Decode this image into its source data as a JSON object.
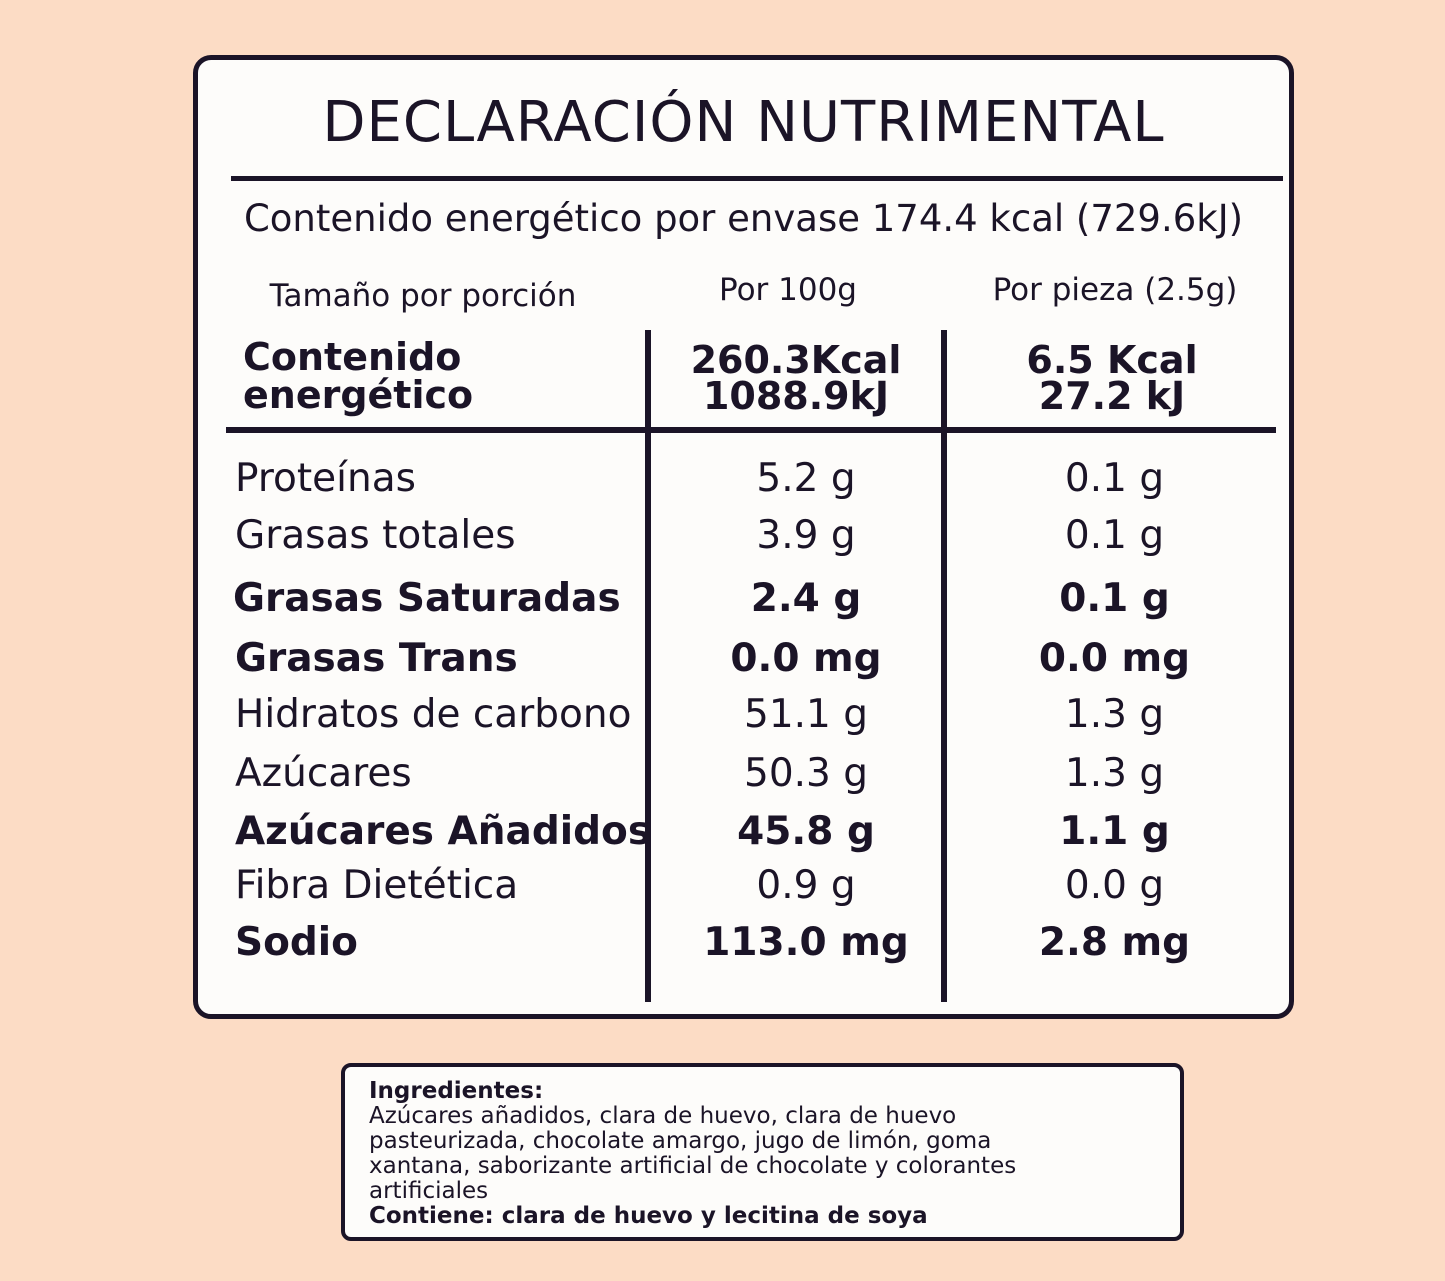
{
  "panel": {
    "title": "DECLARACIÓN NUTRIMENTAL",
    "energy_line": "Contenido energético por envase 174.4 kcal (729.6kJ)",
    "headers": {
      "portion": "Tamaño por porción",
      "per_100g": "Por 100g",
      "per_piece": "Por pieza (2.5g)"
    },
    "energy": {
      "label_line1": "Contenido",
      "label_line2": "energético",
      "per_100g_line1": "260.3Kcal",
      "per_100g_line2": "1088.9kJ",
      "per_piece_line1": "6.5 Kcal",
      "per_piece_line2": "27.2 kJ"
    },
    "rows": [
      {
        "name": "Proteínas",
        "per_100g": "5.2 g",
        "per_piece": "0.1 g",
        "bold": false
      },
      {
        "name": "Grasas totales",
        "per_100g": "3.9 g",
        "per_piece": "0.1 g",
        "bold": false
      },
      {
        "name": "Grasas Saturadas",
        "per_100g": "2.4 g",
        "per_piece": "0.1 g",
        "bold": true
      },
      {
        "name": "Grasas Trans",
        "per_100g": "0.0 mg",
        "per_piece": "0.0 mg",
        "bold": true
      },
      {
        "name": "Hidratos de carbono",
        "per_100g": "51.1 g",
        "per_piece": "1.3 g",
        "bold": false
      },
      {
        "name": "Azúcares",
        "per_100g": "50.3 g",
        "per_piece": "1.3 g",
        "bold": false
      },
      {
        "name": "Azúcares Añadidos",
        "per_100g": "45.8 g",
        "per_piece": "1.1 g",
        "bold": true
      },
      {
        "name": "Fibra Dietética",
        "per_100g": "0.9 g",
        "per_piece": "0.0 g",
        "bold": false
      },
      {
        "name": "Sodio",
        "per_100g": "113.0 mg",
        "per_piece": "2.8 mg",
        "bold": true
      }
    ]
  },
  "ingredients": {
    "title": "Ingredientes:",
    "line1": "Azúcares añadidos, clara de huevo, clara de huevo",
    "line2": "pasteurizada, chocolate amargo, jugo de limón, goma",
    "line3": "xantana, saborizante artificial de chocolate y colorantes",
    "line4": "artificiales",
    "contains": "Contiene: clara de huevo y lecitina de soya"
  }
}
